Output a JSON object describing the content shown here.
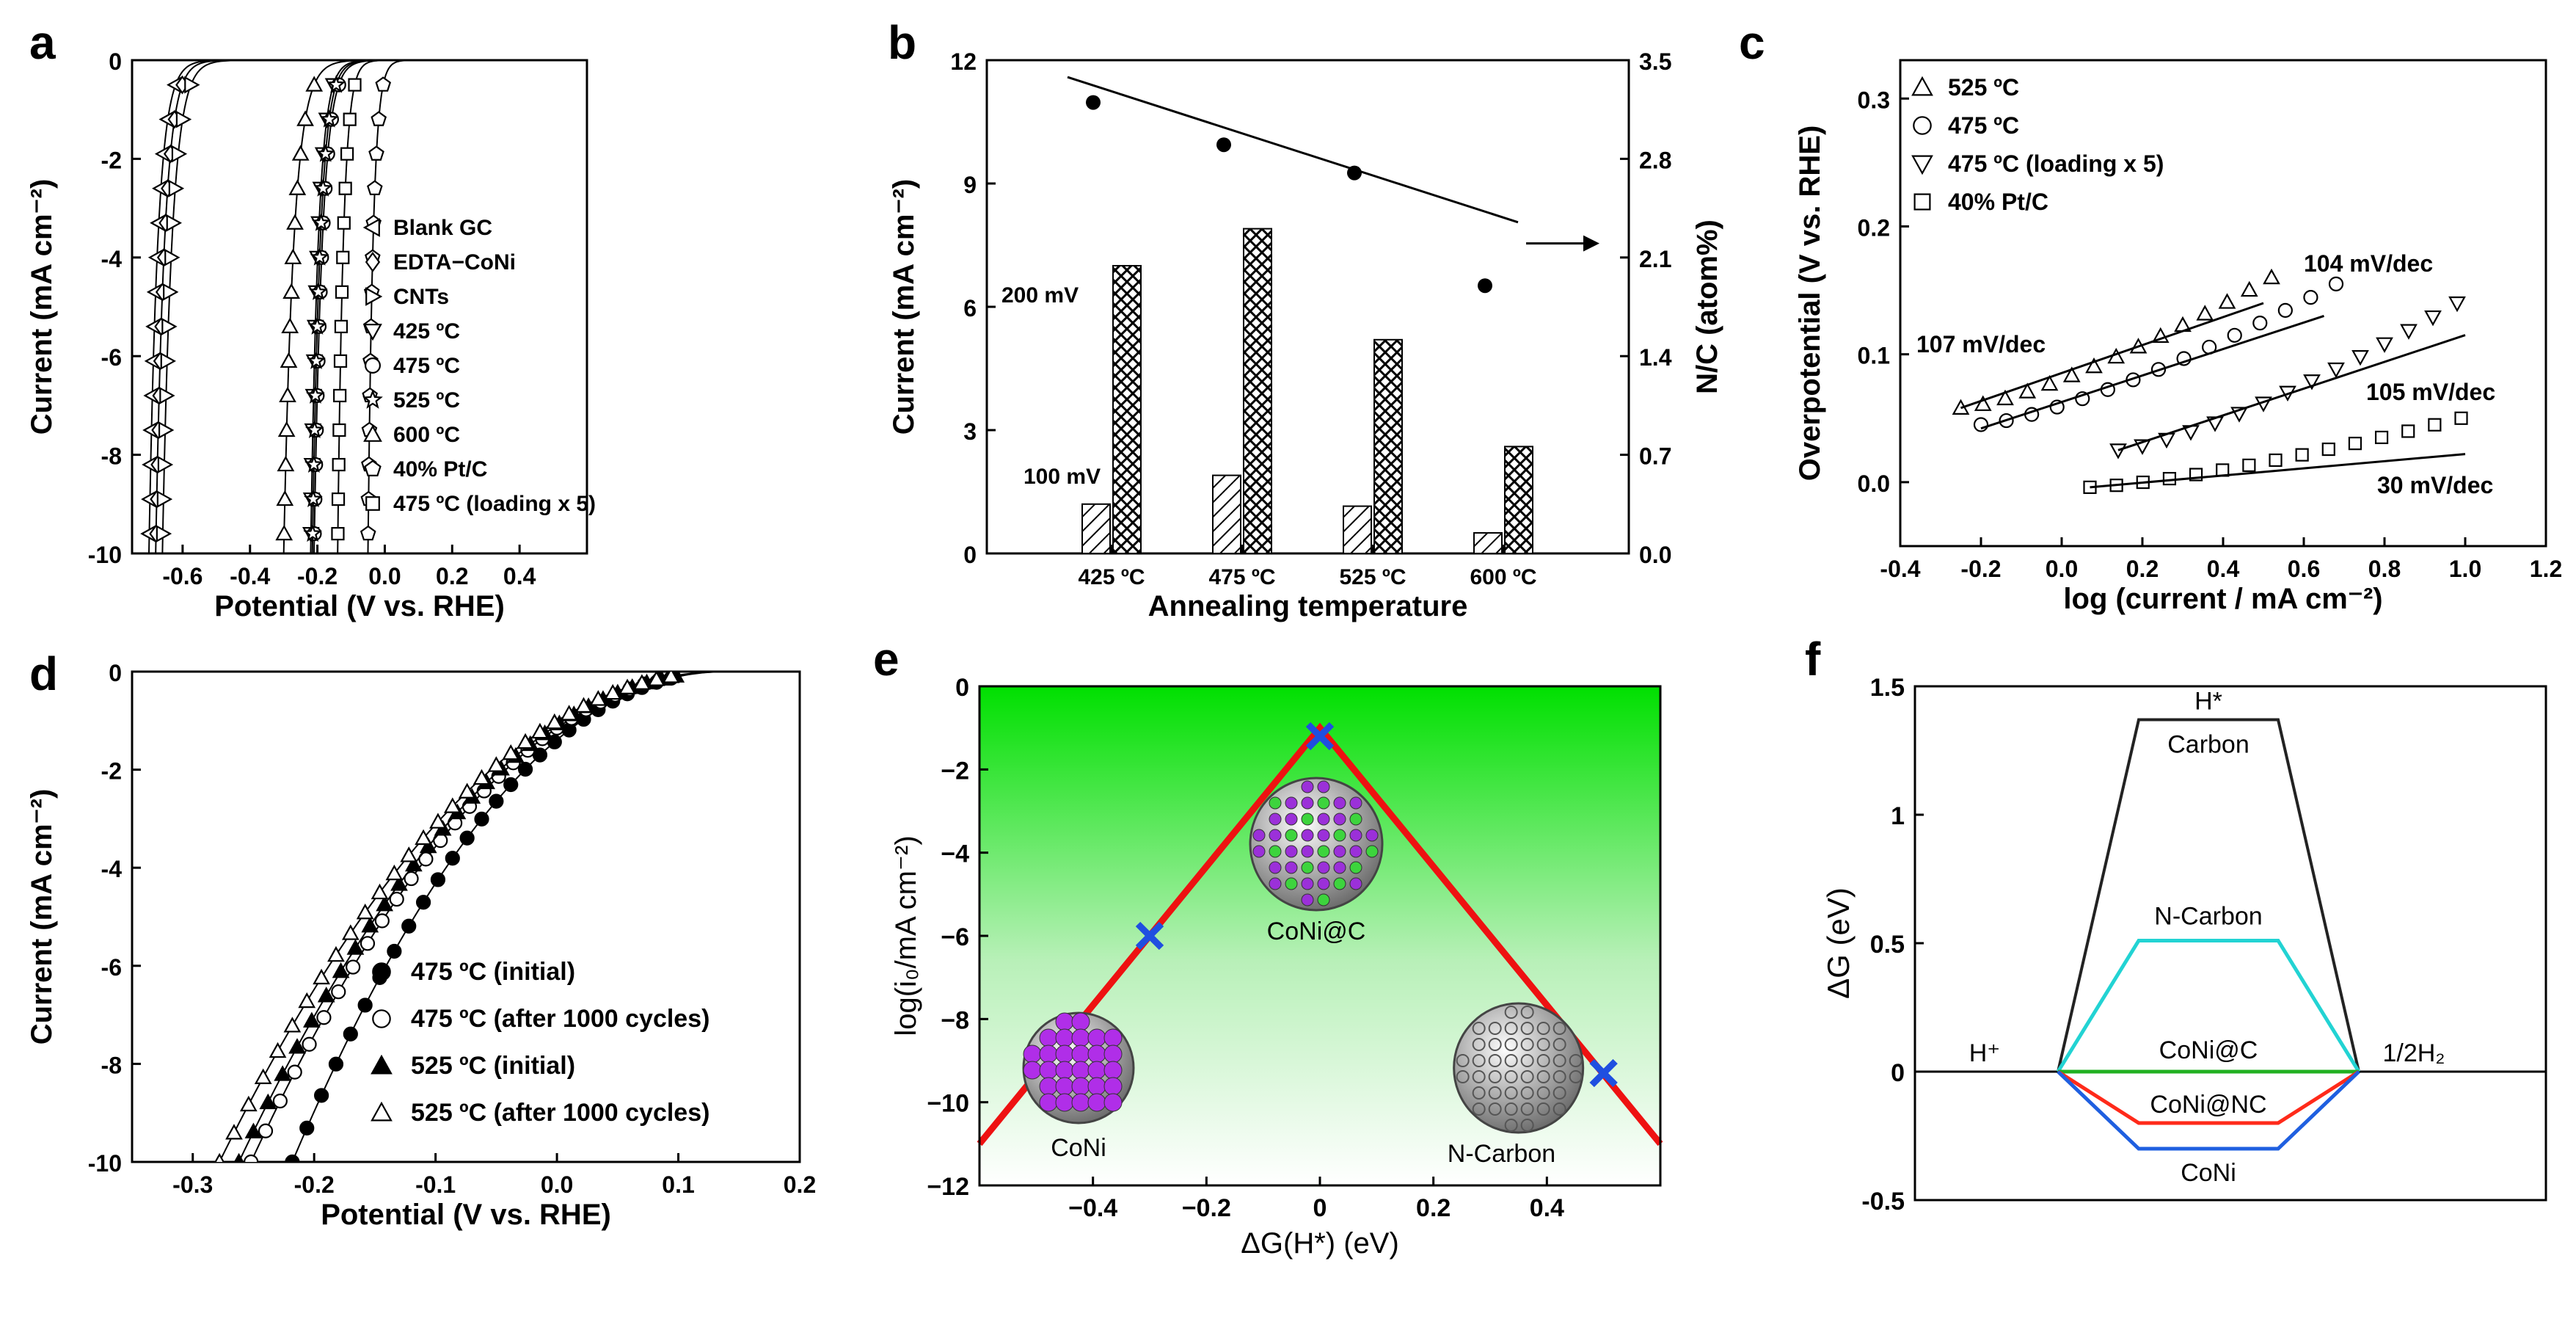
{
  "figure": {
    "panels": [
      {
        "letter": "a",
        "chart_data": {
          "type": "line",
          "xlabel": "Potential (V vs. RHE)",
          "ylabel": "Current (mA cm⁻²)",
          "xlim": [
            -0.75,
            0.6
          ],
          "ylim": [
            -10,
            0
          ],
          "xticks": [
            -0.6,
            -0.4,
            -0.2,
            0.0,
            0.2,
            0.4
          ],
          "xtick_labels": [
            "-0.6",
            "-0.4",
            "-0.2",
            "0.0",
            "0.2",
            "0.4"
          ],
          "yticks": [
            0,
            -2,
            -4,
            -6,
            -8,
            -10
          ],
          "ytick_labels": [
            "0",
            "-2",
            "-4",
            "-6",
            "-8",
            "-10"
          ],
          "series": [
            {
              "name": "Blank GC",
              "marker": "triangle-left",
              "onset": -0.56,
              "half": -0.7
            },
            {
              "name": "EDTA−CoNi",
              "marker": "diamond",
              "onset": -0.54,
              "half": -0.68
            },
            {
              "name": "CNTs",
              "marker": "triangle-right",
              "onset": -0.51,
              "half": -0.66
            },
            {
              "name": "425 ºC",
              "marker": "triangle-down",
              "onset": -0.1,
              "half": -0.22
            },
            {
              "name": "475 ºC",
              "marker": "circle",
              "onset": -0.08,
              "half": -0.21
            },
            {
              "name": "525 ºC",
              "marker": "star",
              "onset": -0.09,
              "half": -0.215
            },
            {
              "name": "600 ºC",
              "marker": "triangle-up",
              "onset": -0.14,
              "half": -0.3
            },
            {
              "name": "40% Pt/C",
              "marker": "pentagon",
              "onset": 0.03,
              "half": -0.05
            },
            {
              "name": "475 ºC (loading x 5)",
              "marker": "square",
              "onset": -0.05,
              "half": -0.14
            }
          ]
        }
      },
      {
        "letter": "b",
        "chart_data": {
          "type": "bar",
          "xlabel": "Annealing temperature",
          "ylabel": "Current (mA cm⁻²)",
          "ylabel_right": "N/C (atom%)",
          "categories": [
            "425 ºC",
            "475 ºC",
            "525 ºC",
            "600 ºC"
          ],
          "ylim": [
            0,
            12
          ],
          "ylim_right": [
            0,
            3.5
          ],
          "yticks": [
            0,
            3,
            6,
            9,
            12
          ],
          "ytick_labels": [
            "0",
            "3",
            "6",
            "9",
            "12"
          ],
          "yticks_right": [
            0.0,
            0.7,
            1.4,
            2.1,
            2.8,
            3.5
          ],
          "ytick_labels_right": [
            "0.0",
            "0.7",
            "1.4",
            "2.1",
            "2.8",
            "3.5"
          ],
          "series": [
            {
              "name": "100 mV",
              "values": [
                1.2,
                1.9,
                1.15,
                0.5
              ]
            },
            {
              "name": "200 mV",
              "values": [
                7.0,
                7.9,
                5.2,
                2.6
              ]
            }
          ],
          "nc_points": [
            3.2,
            2.9,
            2.7,
            1.9
          ],
          "nc_fit": [
            3.38,
            2.35
          ],
          "annotations": {
            "bar1_label": "100 mV",
            "bar2_label": "200 mV"
          }
        }
      },
      {
        "letter": "c",
        "chart_data": {
          "type": "scatter",
          "xlabel": "log (current / mA cm⁻²)",
          "ylabel": "Overpotential (V vs. RHE)",
          "xlim": [
            -0.4,
            1.2
          ],
          "ylim": [
            -0.05,
            0.33
          ],
          "xticks": [
            -0.4,
            -0.2,
            0.0,
            0.2,
            0.4,
            0.6,
            0.8,
            1.0,
            1.2
          ],
          "xtick_labels": [
            "-0.4",
            "-0.2",
            "0.0",
            "0.2",
            "0.4",
            "0.6",
            "0.8",
            "1.0",
            "1.2"
          ],
          "yticks": [
            0.0,
            0.1,
            0.2,
            0.3
          ],
          "ytick_labels": [
            "0.0",
            "0.1",
            "0.2",
            "0.3"
          ],
          "series": [
            {
              "name": "525 ºC",
              "marker": "triangle-up",
              "x_start": -0.25,
              "x_end": 0.52,
              "y_start": 0.058,
              "y_end": 0.16,
              "fit": [
                [
                  -0.25,
                  0.058
                ],
                [
                  0.5,
                  0.14
                ]
              ],
              "slope_label": "107 mV/dec"
            },
            {
              "name": "475 ºC",
              "marker": "circle",
              "x_start": -0.2,
              "x_end": 0.68,
              "y_start": 0.045,
              "y_end": 0.155,
              "fit": [
                [
                  -0.2,
                  0.042
                ],
                [
                  0.65,
                  0.13
                ]
              ],
              "slope_label": "104 mV/dec"
            },
            {
              "name": "475 ºC (loading x 5)",
              "marker": "triangle-down",
              "x_start": 0.14,
              "x_end": 0.98,
              "y_start": 0.025,
              "y_end": 0.14,
              "fit": [
                [
                  0.14,
                  0.025
                ],
                [
                  1.0,
                  0.115
                ]
              ],
              "slope_label": "105 mV/dec"
            },
            {
              "name": "40% Pt/C",
              "marker": "square",
              "x_start": 0.07,
              "x_end": 0.99,
              "y_start": -0.004,
              "y_end": 0.05,
              "fit": [
                [
                  0.07,
                  -0.004
                ],
                [
                  1.0,
                  0.022
                ]
              ],
              "slope_label": "30 mV/dec"
            }
          ]
        }
      },
      {
        "letter": "d",
        "chart_data": {
          "type": "line",
          "xlabel": "Potential (V vs. RHE)",
          "ylabel": "Current (mA cm⁻²)",
          "xlim": [
            -0.35,
            0.2
          ],
          "ylim": [
            -10,
            0
          ],
          "xticks": [
            -0.3,
            -0.2,
            -0.1,
            0.0,
            0.1,
            0.2
          ],
          "xtick_labels": [
            "-0.3",
            "-0.2",
            "-0.1",
            "0.0",
            "0.1",
            "0.2"
          ],
          "yticks": [
            0,
            -2,
            -4,
            -6,
            -8,
            -10
          ],
          "ytick_labels": [
            "0",
            "-2",
            "-4",
            "-6",
            "-8",
            "-10"
          ],
          "series": [
            {
              "name": "475 ºC (initial)",
              "marker": "circle-filled",
              "end_x": -0.218
            },
            {
              "name": "475 ºC (after 1000 cycles)",
              "marker": "circle-open",
              "end_x": -0.252
            },
            {
              "name": "525 ºC (initial)",
              "marker": "triangle-filled",
              "end_x": -0.262
            },
            {
              "name": "525 ºC (after 1000 cycles)",
              "marker": "triangle-open",
              "end_x": -0.278
            }
          ]
        }
      },
      {
        "letter": "e",
        "chart_data": {
          "type": "line",
          "xlabel": "ΔG(H*) (eV)",
          "ylabel": "log(i₀/mA cm⁻²)",
          "xlim": [
            -0.6,
            0.6
          ],
          "ylim": [
            -12,
            0
          ],
          "xticks": [
            -0.4,
            -0.2,
            0.0,
            0.2,
            0.4
          ],
          "xtick_labels": [
            "−0.4",
            "−0.2",
            "0",
            "0.2",
            "0.4"
          ],
          "yticks": [
            0,
            -2,
            -4,
            -6,
            -8,
            -10,
            -12
          ],
          "ytick_labels": [
            "0",
            "−2",
            "−4",
            "−6",
            "−8",
            "−10",
            "−12"
          ],
          "volcano": [
            [
              -0.6,
              -11.0
            ],
            [
              0.0,
              -1.0
            ],
            [
              0.6,
              -11.0
            ]
          ],
          "points": [
            {
              "name": "CoNi",
              "x": -0.3,
              "y": -6.0
            },
            {
              "name": "CoNi@C",
              "x": 0.0,
              "y": -1.2
            },
            {
              "name": "N-Carbon",
              "x": 0.5,
              "y": -9.3
            }
          ],
          "labels": {
            "CoNi": "CoNi",
            "CoNi@C": "CoNi@C",
            "N-Carbon": "N-Carbon"
          }
        }
      },
      {
        "letter": "f",
        "chart_data": {
          "type": "line",
          "ylabel": "ΔG (eV)",
          "ylim": [
            -0.5,
            1.5
          ],
          "yticks": [
            -0.5,
            0,
            0.5,
            1,
            1.5
          ],
          "ytick_labels": [
            "-0.5",
            "0",
            "0.5",
            "1",
            "1.5"
          ],
          "states": [
            "H⁺",
            "H*",
            "1/2H₂"
          ],
          "state_labels": {
            "left": "H⁺",
            "top": "H*",
            "right": "1/2H₂"
          },
          "series": [
            {
              "name": "Carbon",
              "dG": 1.37,
              "color": "#222222"
            },
            {
              "name": "N-Carbon",
              "dG": 0.51,
              "color": "#22d3d3"
            },
            {
              "name": "CoNi@C",
              "dG": 0.0,
              "color": "#21b021"
            },
            {
              "name": "CoNi@NC",
              "dG": -0.2,
              "color": "#ff2a1a"
            },
            {
              "name": "CoNi",
              "dG": -0.3,
              "color": "#1f5fe0"
            }
          ]
        }
      }
    ]
  }
}
